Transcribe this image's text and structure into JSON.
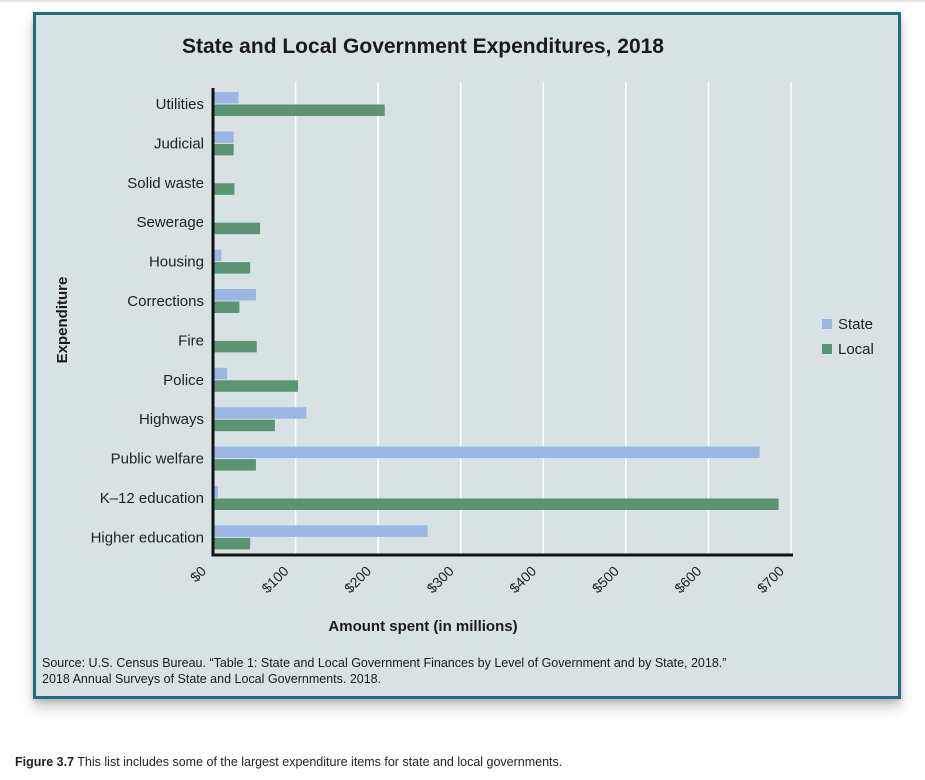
{
  "caption": {
    "label": "Figure 3.7",
    "text": "This list includes some of the largest expenditure items for state and local governments."
  },
  "source": {
    "line1": "Source: U.S. Census Bureau. “Table 1: State and Local Government Finances by Level of Government and by State, 2018.”",
    "line2": "2018 Annual Surveys of State and Local Governments. 2018."
  },
  "colors": {
    "state": "#9ab6e4",
    "local": "#5a9474",
    "gridline": "#ffffff",
    "axis": "#111111"
  },
  "chart_data": {
    "type": "bar",
    "orientation": "horizontal",
    "title": "State and Local Government Expenditures, 2018",
    "xlabel": "Amount spent (in millions)",
    "ylabel": "Expenditure",
    "xlim": [
      0,
      700
    ],
    "xticks": [
      0,
      100,
      200,
      300,
      400,
      500,
      600,
      700
    ],
    "xtick_labels": [
      "$0",
      "$100",
      "$200",
      "$300",
      "$400",
      "$500",
      "$600",
      "$700"
    ],
    "grid": true,
    "legend_position": "right",
    "categories": [
      "Utilities",
      "Judicial",
      "Solid waste",
      "Sewerage",
      "Housing",
      "Corrections",
      "Fire",
      "Police",
      "Highways",
      "Public welfare",
      "K–12 education",
      "Higher education"
    ],
    "series": [
      {
        "name": "State",
        "values": [
          31,
          25,
          1,
          0,
          10,
          52,
          0,
          17,
          113,
          662,
          6,
          260
        ]
      },
      {
        "name": "Local",
        "values": [
          208,
          25,
          26,
          57,
          45,
          32,
          53,
          103,
          75,
          52,
          685,
          45
        ]
      }
    ]
  }
}
